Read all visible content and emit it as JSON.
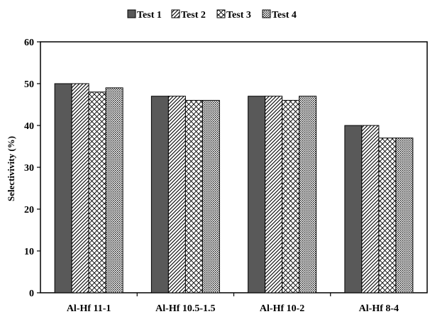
{
  "chart_data": {
    "type": "bar",
    "title": "",
    "xlabel": "",
    "ylabel": "Selectivivity (%)",
    "ylim": [
      0,
      60
    ],
    "yticks": [
      0,
      10,
      20,
      30,
      40,
      50,
      60
    ],
    "grid": false,
    "legend_position": "top",
    "categories": [
      "Al-Hf 11-1",
      "Al-Hf 10.5-1.5",
      "Al-Hf 10-2",
      "Al-Hf 8-4"
    ],
    "series": [
      {
        "name": "Test 1",
        "values": [
          50,
          47,
          47,
          40
        ],
        "pattern": "solid-gray",
        "color": "#595959"
      },
      {
        "name": "Test 2",
        "values": [
          50,
          47,
          47,
          40
        ],
        "pattern": "diagonal-hatch",
        "color": "#000000"
      },
      {
        "name": "Test 3",
        "values": [
          48,
          46,
          46,
          37
        ],
        "pattern": "crosshatch",
        "color": "#000000"
      },
      {
        "name": "Test 4",
        "values": [
          49,
          46,
          47,
          37
        ],
        "pattern": "dotted",
        "color": "#000000"
      }
    ]
  }
}
